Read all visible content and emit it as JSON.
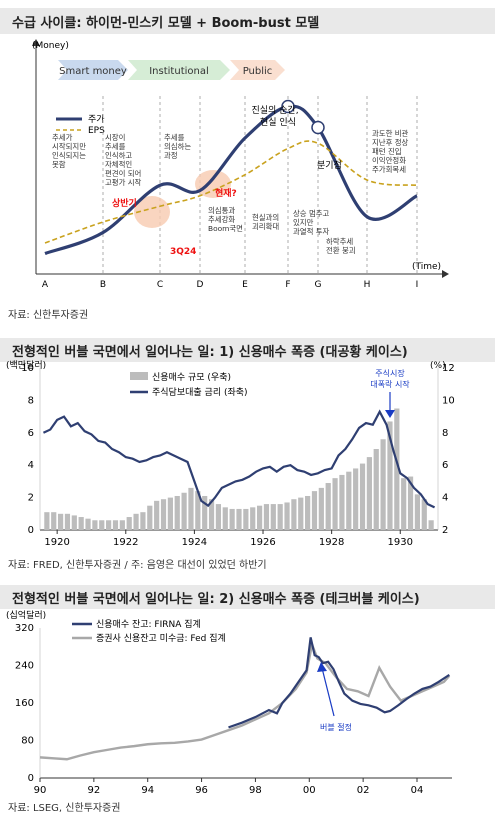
{
  "panel1": {
    "title": "수급 사이클: 하이먼-민스키 모델 + Boom-bust 모델",
    "ylabel": "(Money)",
    "xlabel": "(Time)",
    "phases": [
      {
        "label": "Smart money",
        "color": "#c9d9ee"
      },
      {
        "label": "Institutional",
        "color": "#d6edd6"
      },
      {
        "label": "Public",
        "color": "#fadfd0"
      }
    ],
    "legend": {
      "price": "주가",
      "eps": "EPS"
    },
    "points": [
      "A",
      "B",
      "C",
      "D",
      "E",
      "F",
      "G",
      "H",
      "I"
    ],
    "notes": [
      "추세가 시작되지만 인식되지는 못함",
      "시장이 추세를 인식하고 자체적인 편견이 되어 고평가 시작",
      "추세를 의심하는 과정",
      "의심통과 추세강화 Boom국면",
      "현실과의 괴리확대",
      "상승 멈추고 있지만 과열적 투자",
      "하락추세 전환 붕괴",
      "과도한 비관 지난후 정상 패턴 진입 이익안정화 주가회복세"
    ],
    "callouts": {
      "first_half": "상반기",
      "q324": "3Q24",
      "now": "현재?",
      "moment_of_truth": "진실의 순간, 현실 인식",
      "quarter": "분기점"
    },
    "source": "자료: 신한투자증권"
  },
  "panel2": {
    "title": "전형적인 버블 국면에서 일어나는 일: 1) 신용매수 폭증 (대공황 케이스)",
    "left_unit": "(백만달러)",
    "right_unit": "(%)",
    "annotation": "주식시장 대폭락 시작",
    "source": "자료: FRED, 신한투자증권 / 주: 음영은 대선이 있었던 하반기"
  },
  "panel3": {
    "title": "전형적인 버블 국면에서 일어나는 일: 2) 신용매수 폭증 (테크버블 케이스)",
    "unit": "(십억달러)",
    "annotation": "버블 절정",
    "source": "자료: LSEG, 신한투자증권"
  },
  "chart_data": [
    {
      "type": "line",
      "title": "수급 사이클: 하이먼-민스키 모델 + Boom-bust 모델",
      "xlabel": "(Time)",
      "ylabel": "(Money)",
      "categories": [
        "A",
        "B",
        "C",
        "D",
        "E",
        "F",
        "G",
        "H",
        "I"
      ],
      "series": [
        {
          "name": "주가",
          "values": [
            1.0,
            3.0,
            7.5,
            7.0,
            12.0,
            15.0,
            13.0,
            4.5,
            6.5
          ]
        },
        {
          "name": "EPS",
          "values": [
            2.0,
            4.0,
            5.5,
            6.5,
            8.5,
            11.0,
            11.5,
            8.0,
            7.5
          ]
        }
      ]
    },
    {
      "type": "bar",
      "title": "전형적인 버블 국면에서 일어나는 일: 1) 신용매수 폭증 (대공황 케이스)",
      "x_ticks": [
        "1920",
        "1922",
        "1924",
        "1926",
        "1928",
        "1930"
      ],
      "y_left_ticks": [
        0,
        2,
        4,
        6,
        8,
        10
      ],
      "y_right_ticks": [
        2,
        4,
        6,
        8,
        10,
        12
      ],
      "ylim_left": [
        0,
        10
      ],
      "ylim_right": [
        2,
        12
      ],
      "x_range": [
        1919.5,
        1931.1
      ],
      "series": [
        {
          "name": "신용매수 규모 (우축)",
          "axis": "right",
          "type": "bar",
          "x": [
            1919.7,
            1919.9,
            1920.1,
            1920.3,
            1920.5,
            1920.7,
            1920.9,
            1921.1,
            1921.3,
            1921.5,
            1921.7,
            1921.9,
            1922.1,
            1922.3,
            1922.5,
            1922.7,
            1922.9,
            1923.1,
            1923.3,
            1923.5,
            1923.7,
            1923.9,
            1924.1,
            1924.3,
            1924.5,
            1924.7,
            1924.9,
            1925.1,
            1925.3,
            1925.5,
            1925.7,
            1925.9,
            1926.1,
            1926.3,
            1926.5,
            1926.7,
            1926.9,
            1927.1,
            1927.3,
            1927.5,
            1927.7,
            1927.9,
            1928.1,
            1928.3,
            1928.5,
            1928.7,
            1928.9,
            1929.1,
            1929.3,
            1929.5,
            1929.7,
            1929.9,
            1930.1,
            1930.3,
            1930.5,
            1930.7,
            1930.9
          ],
          "values": [
            3.1,
            3.1,
            3.0,
            3.0,
            2.9,
            2.8,
            2.7,
            2.6,
            2.6,
            2.6,
            2.6,
            2.6,
            2.8,
            3.0,
            3.1,
            3.5,
            3.8,
            3.9,
            4.0,
            4.1,
            4.3,
            4.6,
            4.4,
            4.1,
            3.9,
            3.6,
            3.4,
            3.3,
            3.3,
            3.3,
            3.4,
            3.5,
            3.6,
            3.6,
            3.6,
            3.7,
            3.9,
            4.0,
            4.1,
            4.4,
            4.6,
            4.9,
            5.2,
            5.4,
            5.6,
            5.8,
            6.1,
            6.5,
            7.0,
            7.6,
            8.7,
            9.5,
            5.2,
            5.3,
            4.2,
            3.9,
            2.6
          ]
        },
        {
          "name": "주식담보대출 금리 (좌축)",
          "axis": "left",
          "type": "line",
          "x": [
            1919.6,
            1919.8,
            1920.0,
            1920.2,
            1920.4,
            1920.6,
            1920.8,
            1921.0,
            1921.2,
            1921.4,
            1921.6,
            1921.8,
            1922.0,
            1922.2,
            1922.4,
            1922.6,
            1922.8,
            1923.0,
            1923.2,
            1923.4,
            1923.6,
            1923.8,
            1924.0,
            1924.2,
            1924.4,
            1924.6,
            1924.8,
            1925.0,
            1925.2,
            1925.4,
            1925.6,
            1925.8,
            1926.0,
            1926.2,
            1926.4,
            1926.6,
            1926.8,
            1927.0,
            1927.2,
            1927.4,
            1927.6,
            1927.8,
            1928.0,
            1928.2,
            1928.4,
            1928.6,
            1928.8,
            1929.0,
            1929.2,
            1929.4,
            1929.6,
            1929.8,
            1930.0,
            1930.2,
            1930.4,
            1930.6,
            1930.8,
            1931.0
          ],
          "values": [
            6.0,
            6.2,
            6.8,
            7.0,
            6.4,
            6.6,
            6.1,
            5.9,
            5.5,
            5.4,
            5.0,
            4.8,
            4.5,
            4.4,
            4.2,
            4.3,
            4.5,
            4.6,
            4.8,
            4.6,
            4.4,
            4.2,
            3.0,
            1.8,
            1.5,
            2.0,
            2.6,
            2.8,
            3.0,
            3.1,
            3.3,
            3.6,
            3.8,
            3.9,
            3.6,
            3.9,
            4.0,
            3.7,
            3.6,
            3.4,
            3.5,
            3.7,
            3.8,
            4.6,
            5.0,
            5.6,
            6.3,
            6.6,
            6.5,
            7.3,
            6.5,
            4.9,
            3.5,
            3.2,
            2.6,
            2.2,
            1.6,
            1.4
          ]
        }
      ]
    },
    {
      "type": "line",
      "title": "전형적인 버블 국면에서 일어나는 일: 2) 신용매수 폭증 (테크버블 케이스)",
      "ylabel": "(십억달러)",
      "x_ticks": [
        "90",
        "92",
        "94",
        "96",
        "98",
        "00",
        "02",
        "04"
      ],
      "y_ticks": [
        0,
        80,
        160,
        240,
        320
      ],
      "ylim": [
        0,
        320
      ],
      "x_range": [
        1990,
        2005.3
      ],
      "series": [
        {
          "name": "신용매수 잔고: FIRNA 집계",
          "x": [
            1997.0,
            1997.5,
            1998.0,
            1998.5,
            1998.8,
            1999.0,
            1999.3,
            1999.6,
            1999.9,
            2000.05,
            2000.2,
            2000.35,
            2000.5,
            2000.7,
            2000.9,
            2001.1,
            2001.3,
            2001.6,
            2001.9,
            2002.2,
            2002.5,
            2002.8,
            2003.0,
            2003.3,
            2003.6,
            2003.9,
            2004.2,
            2004.5,
            2004.8,
            2005.2
          ],
          "values": [
            108,
            118,
            130,
            145,
            138,
            160,
            180,
            205,
            230,
            300,
            262,
            258,
            245,
            248,
            232,
            205,
            180,
            165,
            158,
            155,
            150,
            140,
            143,
            155,
            168,
            180,
            190,
            195,
            205,
            220
          ]
        },
        {
          "name": "증권사 신용잔고 미수금: Fed 집계",
          "x": [
            1990.0,
            1990.5,
            1991.0,
            1991.5,
            1992.0,
            1992.5,
            1993.0,
            1993.5,
            1994.0,
            1994.5,
            1995.0,
            1995.5,
            1996.0,
            1996.5,
            1997.0,
            1997.5,
            1998.0,
            1998.5,
            1999.0,
            1999.5,
            1999.9,
            2000.1,
            2000.3,
            2000.6,
            2001.0,
            2001.4,
            2001.8,
            2002.2,
            2002.6,
            2003.0,
            2003.4,
            2003.8,
            2004.2,
            2004.6,
            2005.0,
            2005.2
          ],
          "values": [
            44,
            42,
            40,
            48,
            55,
            60,
            65,
            68,
            72,
            74,
            75,
            78,
            82,
            92,
            102,
            112,
            125,
            138,
            160,
            190,
            225,
            285,
            255,
            245,
            215,
            190,
            185,
            175,
            235,
            195,
            165,
            175,
            185,
            195,
            205,
            218
          ]
        }
      ]
    }
  ]
}
